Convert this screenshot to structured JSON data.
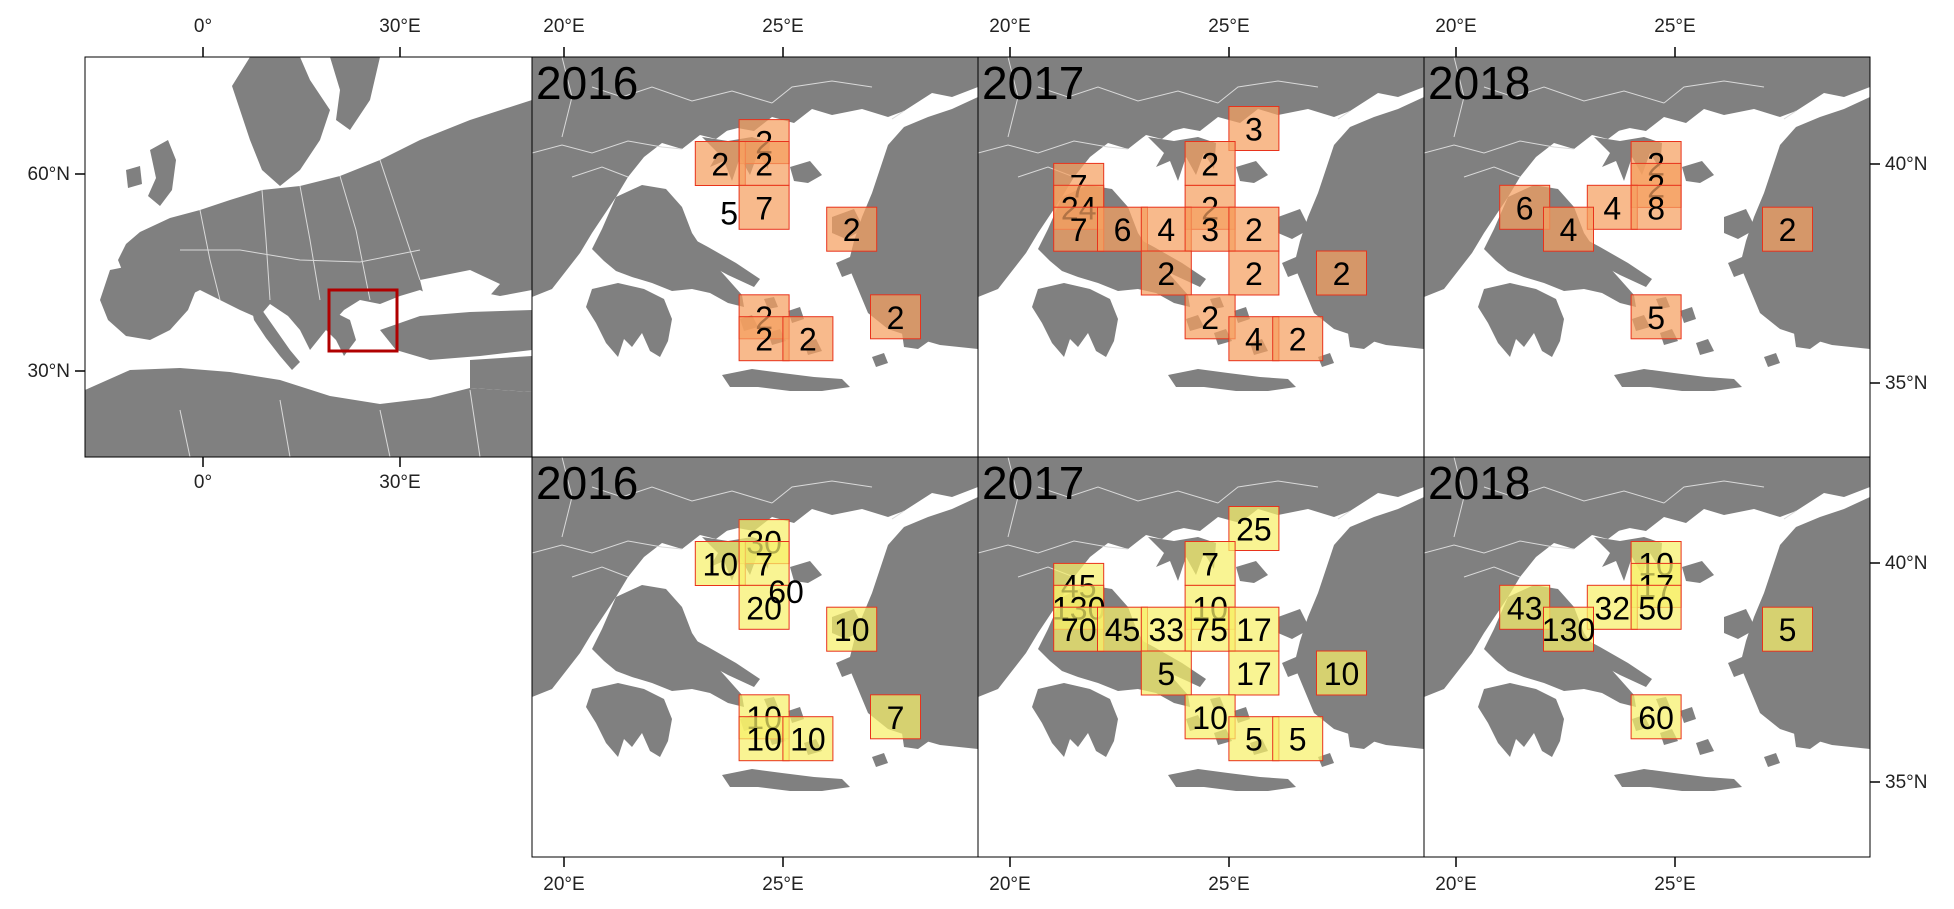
{
  "colors": {
    "land": "#808080",
    "sea": "#ffffff",
    "borders": "#d9d9d9",
    "frame": "#000000",
    "cell_border": "#e8331c",
    "cell_fill_orange": "#f5a060",
    "cell_fill_yellow": "#f7f06a",
    "highlight_box": "#b00000"
  },
  "overview": {
    "top_ticks": [
      "0°",
      "30°E"
    ],
    "bottom_ticks": [
      "0°",
      "30°E"
    ],
    "left_ticks": [
      "60°N",
      "30°N"
    ]
  },
  "right_ticks": {
    "top_row": [
      "40°N",
      "35°N"
    ],
    "bottom_row": [
      "40°N",
      "35°N"
    ]
  },
  "panel_top_ticks": [
    "20°E",
    "25°E"
  ],
  "panel_bottom_ticks": [
    "20°E",
    "25°E"
  ],
  "panels": [
    {
      "year": "2016",
      "row": "top",
      "fill": "orange",
      "cells": [
        {
          "lon": 24.5,
          "lat": 40.5,
          "label": "2"
        },
        {
          "lon": 23.5,
          "lat": 40.0,
          "label": "2"
        },
        {
          "lon": 24.5,
          "lat": 40.0,
          "label": "2"
        },
        {
          "lon": 24.5,
          "lat": 39.0,
          "label": "7"
        },
        {
          "lon": 26.5,
          "lat": 38.5,
          "label": "2"
        },
        {
          "lon": 24.5,
          "lat": 36.5,
          "label": "2"
        },
        {
          "lon": 24.5,
          "lat": 36.0,
          "label": "2"
        },
        {
          "lon": 25.5,
          "lat": 36.0,
          "label": "2"
        },
        {
          "lon": 27.5,
          "lat": 36.5,
          "label": "2"
        }
      ],
      "free_labels": [
        {
          "lon": 23.7,
          "lat": 38.9,
          "label": "5"
        }
      ]
    },
    {
      "year": "2017",
      "row": "top",
      "fill": "orange",
      "cells": [
        {
          "lon": 25.5,
          "lat": 40.8,
          "label": "3"
        },
        {
          "lon": 24.5,
          "lat": 40.0,
          "label": "2"
        },
        {
          "lon": 21.5,
          "lat": 39.5,
          "label": "7"
        },
        {
          "lon": 21.5,
          "lat": 39.0,
          "label": "24"
        },
        {
          "lon": 24.5,
          "lat": 39.0,
          "label": "2"
        },
        {
          "lon": 21.5,
          "lat": 38.5,
          "label": "7"
        },
        {
          "lon": 22.5,
          "lat": 38.5,
          "label": "6"
        },
        {
          "lon": 23.5,
          "lat": 38.5,
          "label": "4"
        },
        {
          "lon": 24.5,
          "lat": 38.5,
          "label": "3"
        },
        {
          "lon": 25.5,
          "lat": 38.5,
          "label": "2"
        },
        {
          "lon": 25.5,
          "lat": 37.5,
          "label": "2"
        },
        {
          "lon": 23.5,
          "lat": 37.5,
          "label": "2"
        },
        {
          "lon": 27.5,
          "lat": 37.5,
          "label": "2"
        },
        {
          "lon": 24.5,
          "lat": 36.5,
          "label": "2"
        },
        {
          "lon": 25.5,
          "lat": 36.0,
          "label": "4"
        },
        {
          "lon": 26.5,
          "lat": 36.0,
          "label": "2"
        }
      ],
      "free_labels": []
    },
    {
      "year": "2018",
      "row": "top",
      "fill": "orange",
      "cells": [
        {
          "lon": 24.5,
          "lat": 40.0,
          "label": "2"
        },
        {
          "lon": 24.5,
          "lat": 39.5,
          "label": "2"
        },
        {
          "lon": 21.5,
          "lat": 39.0,
          "label": "6"
        },
        {
          "lon": 23.5,
          "lat": 39.0,
          "label": "4"
        },
        {
          "lon": 24.5,
          "lat": 39.0,
          "label": "8"
        },
        {
          "lon": 22.5,
          "lat": 38.5,
          "label": "4"
        },
        {
          "lon": 27.5,
          "lat": 38.5,
          "label": "2"
        },
        {
          "lon": 24.5,
          "lat": 36.5,
          "label": "5"
        }
      ],
      "free_labels": []
    },
    {
      "year": "2016",
      "row": "bottom",
      "fill": "yellow",
      "cells": [
        {
          "lon": 24.5,
          "lat": 40.5,
          "label": "30"
        },
        {
          "lon": 23.5,
          "lat": 40.0,
          "label": "10"
        },
        {
          "lon": 24.5,
          "lat": 40.0,
          "label": "7"
        },
        {
          "lon": 24.5,
          "lat": 39.0,
          "label": "20"
        },
        {
          "lon": 26.5,
          "lat": 38.5,
          "label": "10"
        },
        {
          "lon": 24.5,
          "lat": 36.5,
          "label": "10"
        },
        {
          "lon": 24.5,
          "lat": 36.0,
          "label": "10"
        },
        {
          "lon": 25.5,
          "lat": 36.0,
          "label": "10"
        },
        {
          "lon": 27.5,
          "lat": 36.5,
          "label": "7"
        }
      ],
      "free_labels": [
        {
          "lon": 25.0,
          "lat": 39.4,
          "label": "60"
        }
      ]
    },
    {
      "year": "2017",
      "row": "bottom",
      "fill": "yellow",
      "cells": [
        {
          "lon": 25.5,
          "lat": 40.8,
          "label": "25"
        },
        {
          "lon": 24.5,
          "lat": 40.0,
          "label": "7"
        },
        {
          "lon": 21.5,
          "lat": 39.5,
          "label": "45"
        },
        {
          "lon": 21.5,
          "lat": 39.0,
          "label": "130"
        },
        {
          "lon": 24.5,
          "lat": 39.0,
          "label": "10"
        },
        {
          "lon": 21.5,
          "lat": 38.5,
          "label": "70"
        },
        {
          "lon": 22.5,
          "lat": 38.5,
          "label": "45"
        },
        {
          "lon": 23.5,
          "lat": 38.5,
          "label": "33"
        },
        {
          "lon": 24.5,
          "lat": 38.5,
          "label": "75"
        },
        {
          "lon": 25.5,
          "lat": 38.5,
          "label": "17"
        },
        {
          "lon": 25.5,
          "lat": 37.5,
          "label": "17"
        },
        {
          "lon": 23.5,
          "lat": 37.5,
          "label": "5"
        },
        {
          "lon": 27.5,
          "lat": 37.5,
          "label": "10"
        },
        {
          "lon": 24.5,
          "lat": 36.5,
          "label": "10"
        },
        {
          "lon": 25.5,
          "lat": 36.0,
          "label": "5"
        },
        {
          "lon": 26.5,
          "lat": 36.0,
          "label": "5"
        }
      ],
      "free_labels": []
    },
    {
      "year": "2018",
      "row": "bottom",
      "fill": "yellow",
      "cells": [
        {
          "lon": 24.5,
          "lat": 40.0,
          "label": "10"
        },
        {
          "lon": 24.5,
          "lat": 39.5,
          "label": "17"
        },
        {
          "lon": 21.5,
          "lat": 39.0,
          "label": "43"
        },
        {
          "lon": 23.5,
          "lat": 39.0,
          "label": "32"
        },
        {
          "lon": 24.5,
          "lat": 39.0,
          "label": "50"
        },
        {
          "lon": 22.5,
          "lat": 38.5,
          "label": "130"
        },
        {
          "lon": 27.5,
          "lat": 38.5,
          "label": "5"
        },
        {
          "lon": 24.5,
          "lat": 36.5,
          "label": "60"
        }
      ],
      "free_labels": []
    }
  ]
}
